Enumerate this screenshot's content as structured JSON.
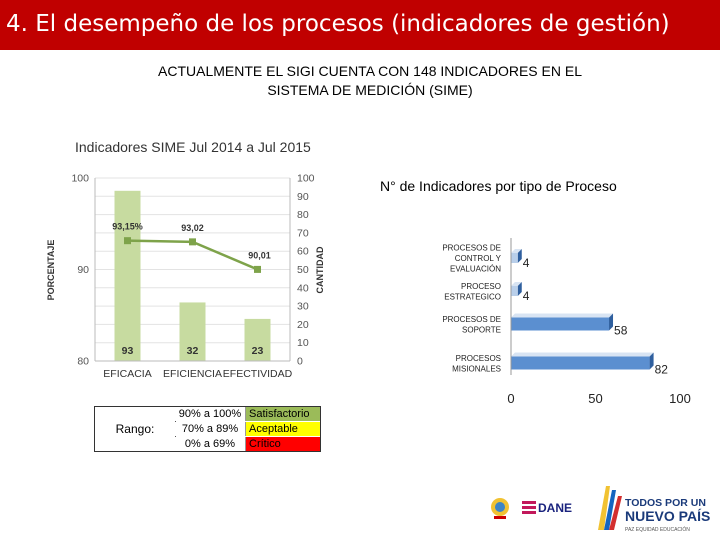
{
  "header": {
    "title": "4. El desempeño de los procesos (indicadores de gestión)",
    "subtitle_line1": "ACTUALMENTE EL SIGI CUENTA CON 148 INDICADORES EN EL",
    "subtitle_line2": "SISTEMA DE MEDICIÓN (SIME)"
  },
  "colors": {
    "header_bg": "#c00000",
    "bar_green": "#c7dba0",
    "line_green": "#7ea34a",
    "bar_blue": "#5b8fd0",
    "bar_blue_light": "#b9cfea",
    "good": "#9bbb59",
    "acceptable": "#ffff00",
    "critical": "#ff0000"
  },
  "chart_data": [
    {
      "type": "bar",
      "title": "Indicadores SIME Jul 2014 a Jul 2015",
      "categories": [
        "EFICACIA",
        "EFICIENCIA",
        "EFECTIVIDAD"
      ],
      "series": [
        {
          "name": "CANTIDAD",
          "axis": "right",
          "values": [
            93,
            32,
            23
          ],
          "labels": [
            "93",
            "32",
            "23"
          ]
        },
        {
          "name": "PORCENTAJE",
          "axis": "left",
          "type": "line",
          "values": [
            93.15,
            93.02,
            90.01
          ],
          "labels": [
            "93,15%",
            "93,02",
            "90,01"
          ]
        }
      ],
      "ylabel_left": "PORCENTAJE",
      "ylabel_right": "CANTIDAD",
      "ylim_left": [
        80,
        100
      ],
      "yticks_left": [
        "80",
        "90",
        "100"
      ],
      "ylim_right": [
        0,
        100
      ],
      "yticks_right": [
        "0",
        "10",
        "20",
        "30",
        "40",
        "50",
        "60",
        "70",
        "80",
        "90",
        "100"
      ]
    },
    {
      "type": "bar",
      "orientation": "horizontal",
      "title": "N° de Indicadores por tipo de Proceso",
      "categories": [
        "PROCESOS DE CONTROL Y EVALUACIÓN",
        "PROCESO ESTRATEGICO",
        "PROCESOS DE SOPORTE",
        "PROCESOS MISIONALES"
      ],
      "category_lines": [
        [
          "PROCESOS DE",
          "CONTROL Y",
          "EVALUACIÓN"
        ],
        [
          "PROCESO",
          "ESTRATEGICO"
        ],
        [
          "PROCESOS DE",
          "SOPORTE"
        ],
        [
          "PROCESOS",
          "MISIONALES"
        ]
      ],
      "values": [
        4,
        4,
        58,
        82
      ],
      "xlim": [
        0,
        100
      ],
      "xticks": [
        "0",
        "50",
        "100"
      ]
    }
  ],
  "range_table": {
    "label": "Rango:",
    "rows": [
      {
        "range": "90% a 100%",
        "category": "Satisfactorio"
      },
      {
        "range": "70% a 89%",
        "category": "Aceptable"
      },
      {
        "range": "0% a 69%",
        "category": "Crítico"
      }
    ]
  },
  "logos": {
    "dane_text": "DANE",
    "brand_line1": "TODOS POR UN",
    "brand_line2": "NUEVO PAÍS",
    "brand_tagline": "PAZ   EQUIDAD   EDUCACIÓN"
  }
}
